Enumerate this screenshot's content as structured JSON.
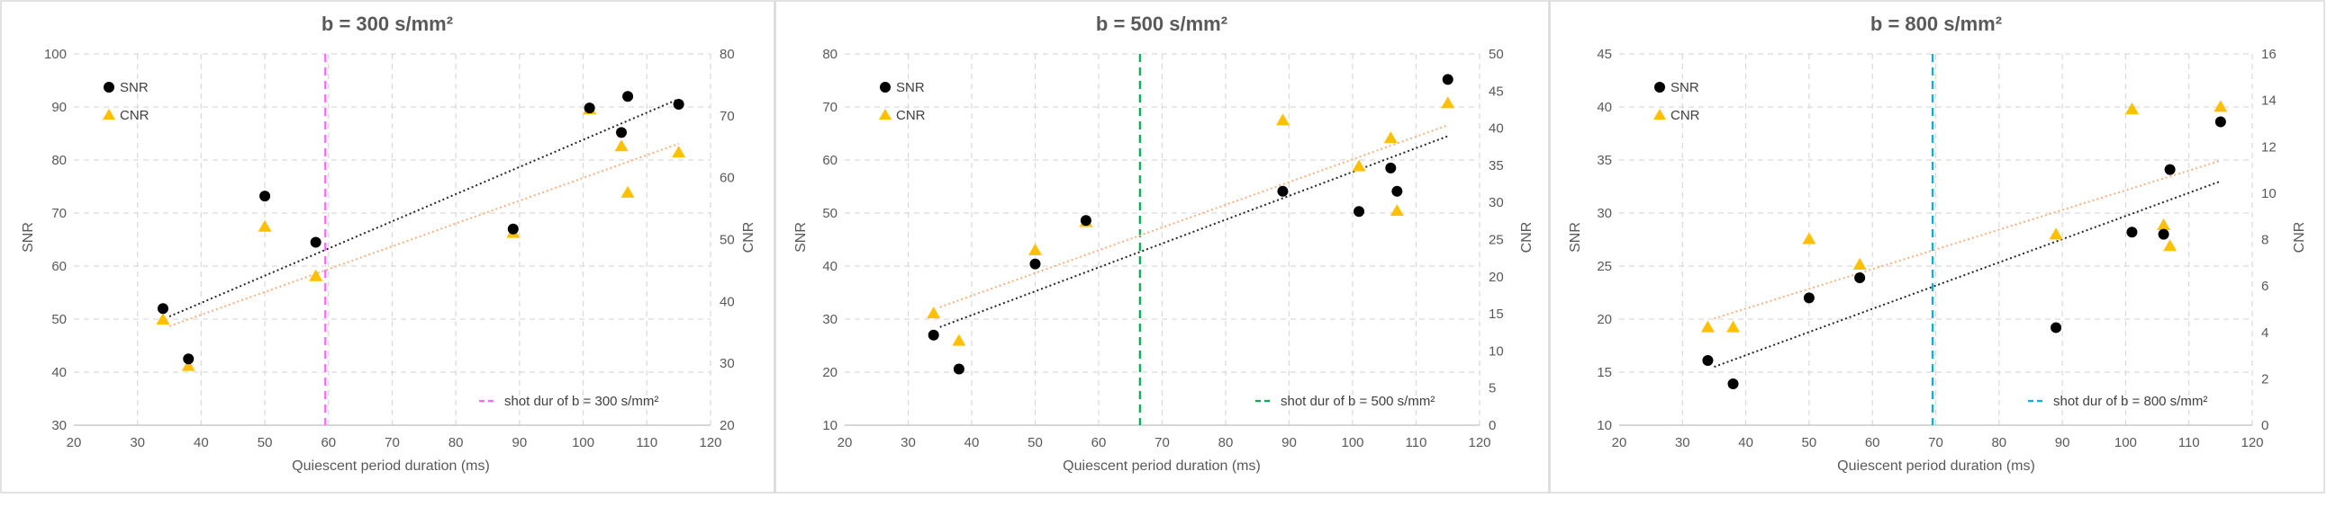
{
  "chart_data": [
    {
      "type": "scatter",
      "title": "b = 300 s/mm²",
      "xlabel": "Quiescent period duration (ms)",
      "ylabel": "SNR",
      "y2label": "CNR",
      "xlim": [
        20,
        120
      ],
      "xticks": [
        20,
        30,
        40,
        50,
        60,
        70,
        80,
        90,
        100,
        110,
        120
      ],
      "ylim": [
        30,
        100
      ],
      "yticks": [
        30,
        40,
        50,
        60,
        70,
        80,
        90,
        100
      ],
      "y2lim": [
        20,
        80
      ],
      "y2ticks": [
        20,
        30,
        40,
        50,
        60,
        70,
        80
      ],
      "series": [
        {
          "name": "SNR",
          "axis": "left",
          "marker": "circle",
          "color": "#000000",
          "x": [
            34,
            38,
            50,
            58,
            89,
            101,
            106,
            107,
            115
          ],
          "y": [
            52,
            42.5,
            73.2,
            64.5,
            67,
            89.8,
            85.2,
            92,
            90.5
          ],
          "trend": [
            [
              35,
              50.5
            ],
            [
              115,
              91.5
            ]
          ]
        },
        {
          "name": "CNR",
          "axis": "right",
          "marker": "triangle",
          "color": "#ffc000",
          "x": [
            34,
            38,
            50,
            58,
            89,
            101,
            106,
            107,
            115
          ],
          "y": [
            37,
            29.5,
            52,
            44,
            51,
            71,
            65,
            57.5,
            64
          ],
          "trend": [
            [
              35,
              36
            ],
            [
              115,
              65.5
            ]
          ]
        }
      ],
      "vline": {
        "x": 59.5,
        "color": "#ff66ff",
        "label": "shot dur of b = 300 s/mm²"
      },
      "legend_position": "top-left"
    },
    {
      "type": "scatter",
      "title": "b = 500 s/mm²",
      "xlabel": "Quiescent period duration (ms)",
      "ylabel": "SNR",
      "y2label": "CNR",
      "xlim": [
        20,
        120
      ],
      "xticks": [
        20,
        30,
        40,
        50,
        60,
        70,
        80,
        90,
        100,
        110,
        120
      ],
      "ylim": [
        10,
        80
      ],
      "yticks": [
        10,
        20,
        30,
        40,
        50,
        60,
        70,
        80
      ],
      "y2lim": [
        0,
        50
      ],
      "y2ticks": [
        0,
        5,
        10,
        15,
        20,
        25,
        30,
        35,
        40,
        45,
        50
      ],
      "series": [
        {
          "name": "SNR",
          "axis": "left",
          "marker": "circle",
          "color": "#000000",
          "x": [
            34,
            38,
            50,
            58,
            89,
            101,
            106,
            107,
            115
          ],
          "y": [
            27,
            20.6,
            40.4,
            48.6,
            54.1,
            50.3,
            58.5,
            54.1,
            75.2
          ],
          "trend": [
            [
              35,
              28.5
            ],
            [
              115,
              64.5
            ]
          ]
        },
        {
          "name": "CNR",
          "axis": "right",
          "marker": "triangle",
          "color": "#ffc000",
          "x": [
            34,
            38,
            50,
            58,
            89,
            101,
            106,
            107,
            115
          ],
          "y": [
            15,
            11.3,
            23.5,
            27.3,
            41,
            34.8,
            38.6,
            28.8,
            43.3
          ],
          "trend": [
            [
              35,
              15.9
            ],
            [
              115,
              40.4
            ]
          ]
        }
      ],
      "vline": {
        "x": 66.5,
        "color": "#00b050",
        "label": "shot dur of b = 500 s/mm²"
      },
      "legend_position": "top-left"
    },
    {
      "type": "scatter",
      "title": "b = 800 s/mm²",
      "xlabel": "Quiescent period duration (ms)",
      "ylabel": "SNR",
      "y2label": "CNR",
      "xlim": [
        20,
        120
      ],
      "xticks": [
        20,
        30,
        40,
        50,
        60,
        70,
        80,
        90,
        100,
        110,
        120
      ],
      "ylim": [
        10,
        45
      ],
      "yticks": [
        10,
        15,
        20,
        25,
        30,
        35,
        40,
        45
      ],
      "y2lim": [
        0,
        16
      ],
      "y2ticks": [
        0,
        2,
        4,
        6,
        8,
        10,
        12,
        14,
        16
      ],
      "series": [
        {
          "name": "SNR",
          "axis": "left",
          "marker": "circle",
          "color": "#000000",
          "x": [
            34,
            38,
            50,
            58,
            89,
            101,
            106,
            107,
            115
          ],
          "y": [
            16.1,
            13.9,
            22,
            23.9,
            19.2,
            28.2,
            28,
            34.1,
            38.6
          ],
          "trend": [
            [
              35,
              15.5
            ],
            [
              115,
              33
            ]
          ]
        },
        {
          "name": "CNR",
          "axis": "right",
          "marker": "triangle",
          "color": "#ffc000",
          "x": [
            34,
            38,
            50,
            58,
            89,
            101,
            106,
            107,
            115
          ],
          "y": [
            4.2,
            4.2,
            8,
            6.9,
            8.2,
            13.6,
            8.6,
            7.7,
            13.7
          ],
          "trend": [
            [
              35,
              4.6
            ],
            [
              115,
              11.4
            ]
          ]
        }
      ],
      "vline": {
        "x": 69.5,
        "color": "#00b0f0",
        "label": "shot dur of b = 800 s/mm²"
      },
      "legend_position": "top-left"
    }
  ]
}
